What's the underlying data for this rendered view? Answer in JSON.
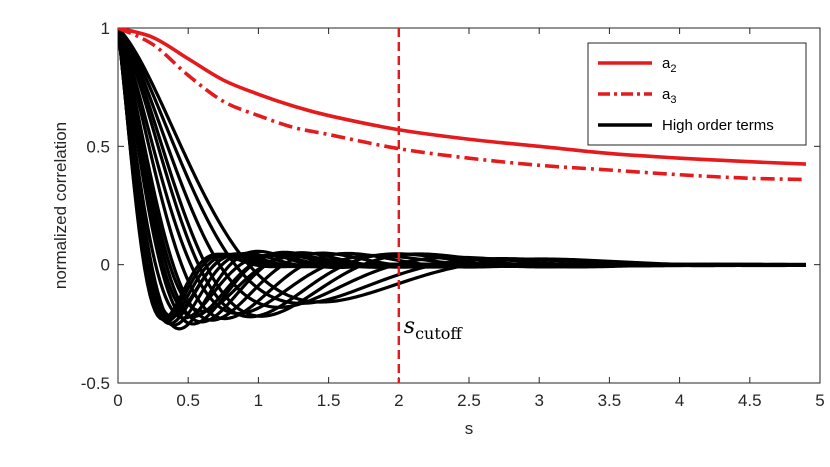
{
  "chart_data": {
    "type": "line",
    "xlabel": "s",
    "ylabel": "normalized correlation",
    "xlim": [
      0,
      5
    ],
    "ylim": [
      -0.5,
      1
    ],
    "xticks": [
      "0",
      "0.5",
      "1",
      "1.5",
      "2",
      "2.5",
      "3",
      "3.5",
      "4",
      "4.5",
      "5"
    ],
    "yticks": [
      "-0.5",
      "0",
      "0.5",
      "1"
    ],
    "grid": false,
    "legend_position": "top-right",
    "colors": {
      "a2": "#e41a1c",
      "a3": "#e41a1c",
      "high": "#000000",
      "cutoff": "#e41a1c"
    },
    "series": [
      {
        "name": "a_2",
        "legend_base": "a",
        "legend_sub": "2",
        "style": "solid",
        "color": "#e41a1c",
        "x": [
          0,
          0.25,
          0.5,
          0.75,
          1.0,
          1.25,
          1.5,
          2.0,
          2.5,
          3.0,
          3.5,
          4.0,
          4.5,
          4.9
        ],
        "y": [
          1.0,
          0.96,
          0.87,
          0.78,
          0.72,
          0.67,
          0.63,
          0.57,
          0.53,
          0.5,
          0.47,
          0.45,
          0.435,
          0.425
        ]
      },
      {
        "name": "a_3",
        "legend_base": "a",
        "legend_sub": "3",
        "style": "dashdot",
        "color": "#e41a1c",
        "x": [
          0,
          0.25,
          0.5,
          0.75,
          1.0,
          1.25,
          1.5,
          2.0,
          2.5,
          3.0,
          3.5,
          4.0,
          4.5,
          4.9
        ],
        "y": [
          1.0,
          0.93,
          0.8,
          0.69,
          0.63,
          0.58,
          0.55,
          0.49,
          0.45,
          0.42,
          0.4,
          0.38,
          0.365,
          0.36
        ]
      },
      {
        "name": "High order terms",
        "style": "solid",
        "color": "#000000",
        "curves": [
          {
            "amp": -1.45,
            "w": 6.0,
            "d": 3.2
          },
          {
            "amp": -1.4,
            "w": 5.6,
            "d": 2.8
          },
          {
            "amp": -1.3,
            "w": 5.2,
            "d": 2.9
          },
          {
            "amp": -1.42,
            "w": 6.5,
            "d": 3.5
          },
          {
            "amp": -1.2,
            "w": 4.8,
            "d": 2.4
          },
          {
            "amp": -1.1,
            "w": 4.4,
            "d": 2.2
          },
          {
            "amp": -1.0,
            "w": 4.0,
            "d": 2.0
          },
          {
            "amp": -0.9,
            "w": 3.6,
            "d": 1.8
          },
          {
            "amp": -0.85,
            "w": 3.2,
            "d": 1.7
          },
          {
            "amp": -0.75,
            "w": 3.0,
            "d": 1.5
          },
          {
            "amp": -0.7,
            "w": 2.8,
            "d": 1.4
          },
          {
            "amp": -0.6,
            "w": 2.5,
            "d": 1.4
          },
          {
            "amp": -0.55,
            "w": 2.2,
            "d": 1.3
          },
          {
            "amp": -0.5,
            "w": 2.0,
            "d": 1.2
          },
          {
            "amp": -1.35,
            "w": 7.0,
            "d": 3.8
          },
          {
            "amp": -1.25,
            "w": 7.5,
            "d": 4.0
          },
          {
            "amp": -1.15,
            "w": 8.0,
            "d": 4.2
          },
          {
            "amp": -1.05,
            "w": 6.8,
            "d": 3.6
          },
          {
            "amp": -0.95,
            "w": 5.0,
            "d": 2.6
          },
          {
            "amp": -0.8,
            "w": 4.6,
            "d": 2.5
          }
        ]
      }
    ],
    "vline": {
      "x": 2,
      "style": "dashed",
      "color": "#e41a1c"
    },
    "annotation": {
      "text_base": "s",
      "text_sub": "cutoff",
      "x": 2,
      "y": -0.07
    },
    "legend": [
      {
        "label_base": "a",
        "label_sub": "2"
      },
      {
        "label_base": "a",
        "label_sub": "3"
      },
      {
        "label_base": "High order terms",
        "label_sub": ""
      }
    ]
  }
}
